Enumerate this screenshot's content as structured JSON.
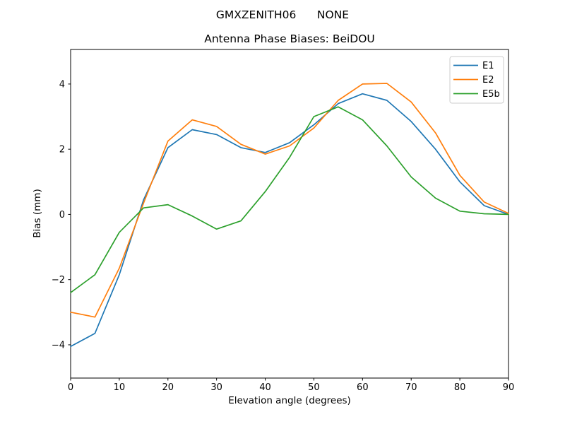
{
  "figure": {
    "suptitle": "GMXZENITH06      NONE",
    "axes_title": "Antenna Phase Biases: BeiDOU"
  },
  "chart_data": {
    "type": "line",
    "suptitle": "GMXZENITH06      NONE",
    "title": "Antenna Phase Biases: BeiDOU",
    "xlabel": "Elevation angle (degrees)",
    "ylabel": "Bias (mm)",
    "xlim": [
      0,
      90
    ],
    "ylim": [
      -5.02,
      5.06
    ],
    "grid": false,
    "legend_position": "upper right",
    "xticks": [
      0,
      10,
      20,
      30,
      40,
      50,
      60,
      70,
      80,
      90
    ],
    "xtick_labels": [
      "0",
      "10",
      "20",
      "30",
      "40",
      "50",
      "60",
      "70",
      "80",
      "90"
    ],
    "yticks": [
      -4,
      -2,
      0,
      2,
      4
    ],
    "ytick_labels": [
      "−4",
      "−2",
      "0",
      "2",
      "4"
    ],
    "x": [
      0,
      5,
      10,
      15,
      20,
      25,
      30,
      35,
      40,
      45,
      50,
      55,
      60,
      65,
      70,
      75,
      80,
      85,
      90
    ],
    "series": [
      {
        "name": "E1",
        "color": "#1f77b4",
        "values": [
          -4.05,
          -3.65,
          -1.85,
          0.45,
          2.05,
          2.6,
          2.45,
          2.05,
          1.9,
          2.2,
          2.75,
          3.4,
          3.7,
          3.5,
          2.85,
          2.0,
          1.0,
          0.27,
          0.0
        ]
      },
      {
        "name": "E2",
        "color": "#ff7f0e",
        "values": [
          -3.0,
          -3.15,
          -1.65,
          0.35,
          2.25,
          2.9,
          2.7,
          2.15,
          1.85,
          2.1,
          2.65,
          3.5,
          4.0,
          4.02,
          3.45,
          2.5,
          1.2,
          0.38,
          0.03
        ]
      },
      {
        "name": "E5b",
        "color": "#2ca02c",
        "values": [
          -2.4,
          -1.85,
          -0.55,
          0.2,
          0.3,
          -0.05,
          -0.45,
          -0.2,
          0.7,
          1.75,
          3.0,
          3.3,
          2.9,
          2.1,
          1.15,
          0.5,
          0.1,
          0.02,
          0.0
        ]
      }
    ]
  }
}
